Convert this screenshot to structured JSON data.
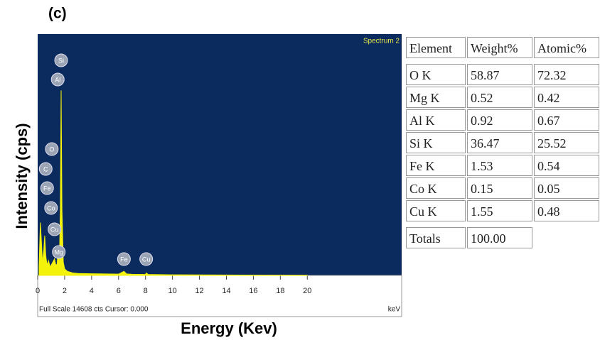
{
  "panel_label": "(c)",
  "chart_data": {
    "type": "area",
    "title": "Spectrum 2",
    "x_label": "Energy (Kev)",
    "y_label": "Intensity (cps)",
    "footer": "Full Scale 14608 cts Cursor: 0.000",
    "unit_label": "keV",
    "x": [
      0.1,
      0.2,
      0.28,
      0.35,
      0.45,
      0.52,
      0.6,
      0.7,
      0.8,
      0.93,
      1.05,
      1.25,
      1.35,
      1.45,
      1.49,
      1.55,
      1.62,
      1.68,
      1.74,
      1.8,
      1.9,
      2.0,
      2.2,
      2.6,
      3.0,
      4.0,
      5.0,
      6.0,
      6.4,
      6.6,
      7.0,
      8.0,
      8.05,
      8.2,
      10,
      15,
      20
    ],
    "series": [
      {
        "name": "Spectrum 2",
        "color": "#f2f20a",
        "values": [
          500,
          3200,
          2000,
          800,
          1500,
          2400,
          1200,
          600,
          900,
          500,
          700,
          1000,
          600,
          700,
          1500,
          900,
          1200,
          4000,
          11200,
          4000,
          800,
          400,
          250,
          150,
          120,
          100,
          90,
          80,
          250,
          90,
          70,
          60,
          150,
          60,
          40,
          20,
          10
        ]
      }
    ],
    "xlim": [
      0,
      27
    ],
    "ylim": [
      0,
      14608
    ],
    "xticks": [
      0,
      2,
      4,
      6,
      8,
      10,
      12,
      14,
      16,
      18,
      20
    ],
    "background": "#0b2a5e",
    "annotations": [
      {
        "text": "Si",
        "x": 1.74
      },
      {
        "text": "Al",
        "x": 1.49
      },
      {
        "text": "O",
        "x": 0.52
      },
      {
        "text": "C",
        "x": 0.28
      },
      {
        "text": "Fe",
        "x": 0.7
      },
      {
        "text": "Co",
        "x": 0.78
      },
      {
        "text": "Cu",
        "x": 0.93
      },
      {
        "text": "Mg",
        "x": 1.25
      },
      {
        "text": "Fe",
        "x": 6.4
      },
      {
        "text": "Cu",
        "x": 8.05
      }
    ]
  },
  "table": {
    "header": [
      "Element",
      "Weight%",
      "Atomic%"
    ],
    "rows": [
      [
        "O K",
        "58.87",
        "72.32"
      ],
      [
        "Mg K",
        "0.52",
        "0.42"
      ],
      [
        "Al K",
        "0.92",
        "0.67"
      ],
      [
        "Si K",
        "36.47",
        "25.52"
      ],
      [
        "Fe K",
        "1.53",
        "0.54"
      ],
      [
        "Co K",
        "0.15",
        "0.05"
      ],
      [
        "Cu K",
        "1.55",
        "0.48"
      ]
    ],
    "totals": [
      "Totals",
      "100.00"
    ]
  }
}
